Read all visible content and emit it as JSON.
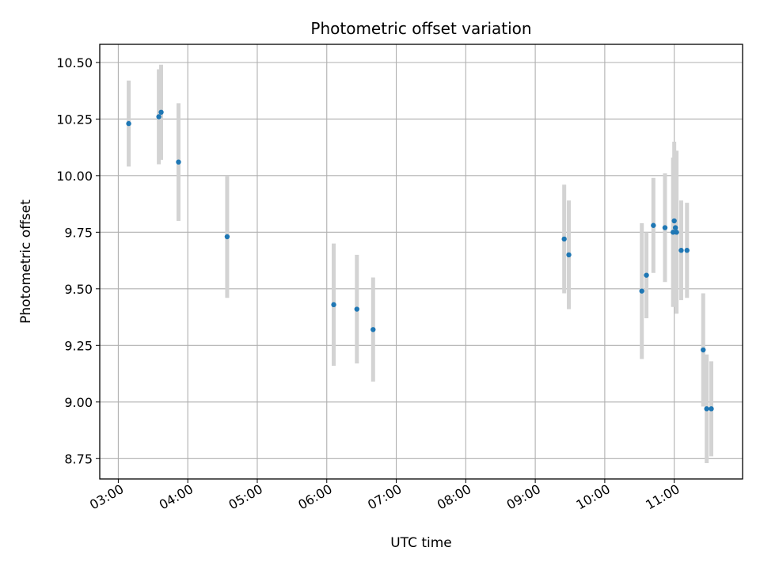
{
  "chart_data": {
    "type": "scatter",
    "title": "Photometric offset variation",
    "xlabel": "UTC time",
    "ylabel": "Photometric offset",
    "xlim": [
      "02:44",
      "11:59"
    ],
    "ylim": [
      8.66,
      10.58
    ],
    "xticks": [
      "03:00",
      "04:00",
      "05:00",
      "06:00",
      "07:00",
      "08:00",
      "09:00",
      "10:00",
      "11:00"
    ],
    "yticks": [
      "8.75",
      "9.00",
      "9.25",
      "9.50",
      "9.75",
      "10.00",
      "10.25",
      "10.50"
    ],
    "grid": true,
    "point_color": "#1f77b4",
    "errorbar_color": "#d3d3d3",
    "points": [
      {
        "x": "03:09",
        "y": 10.23,
        "err": 0.19
      },
      {
        "x": "03:35",
        "y": 10.26,
        "err": 0.21
      },
      {
        "x": "03:37",
        "y": 10.28,
        "err": 0.21
      },
      {
        "x": "03:52",
        "y": 10.06,
        "err": 0.26
      },
      {
        "x": "04:34",
        "y": 9.73,
        "err": 0.27
      },
      {
        "x": "06:06",
        "y": 9.43,
        "err": 0.27
      },
      {
        "x": "06:26",
        "y": 9.41,
        "err": 0.24
      },
      {
        "x": "06:40",
        "y": 9.32,
        "err": 0.23
      },
      {
        "x": "09:25",
        "y": 9.72,
        "err": 0.24
      },
      {
        "x": "09:29",
        "y": 9.65,
        "err": 0.24
      },
      {
        "x": "10:32",
        "y": 9.49,
        "err": 0.3
      },
      {
        "x": "10:36",
        "y": 9.56,
        "err": 0.19
      },
      {
        "x": "10:42",
        "y": 9.78,
        "err": 0.21
      },
      {
        "x": "10:52",
        "y": 9.77,
        "err": 0.24
      },
      {
        "x": "10:59",
        "y": 9.75,
        "err": 0.33
      },
      {
        "x": "11:00",
        "y": 9.8,
        "err": 0.35
      },
      {
        "x": "11:01",
        "y": 9.77,
        "err": 0.3
      },
      {
        "x": "11:02",
        "y": 9.75,
        "err": 0.36
      },
      {
        "x": "11:06",
        "y": 9.67,
        "err": 0.22
      },
      {
        "x": "11:11",
        "y": 9.67,
        "err": 0.21
      },
      {
        "x": "11:25",
        "y": 9.23,
        "err": 0.25
      },
      {
        "x": "11:28",
        "y": 8.97,
        "err": 0.24
      },
      {
        "x": "11:32",
        "y": 8.97,
        "err": 0.21
      }
    ]
  }
}
